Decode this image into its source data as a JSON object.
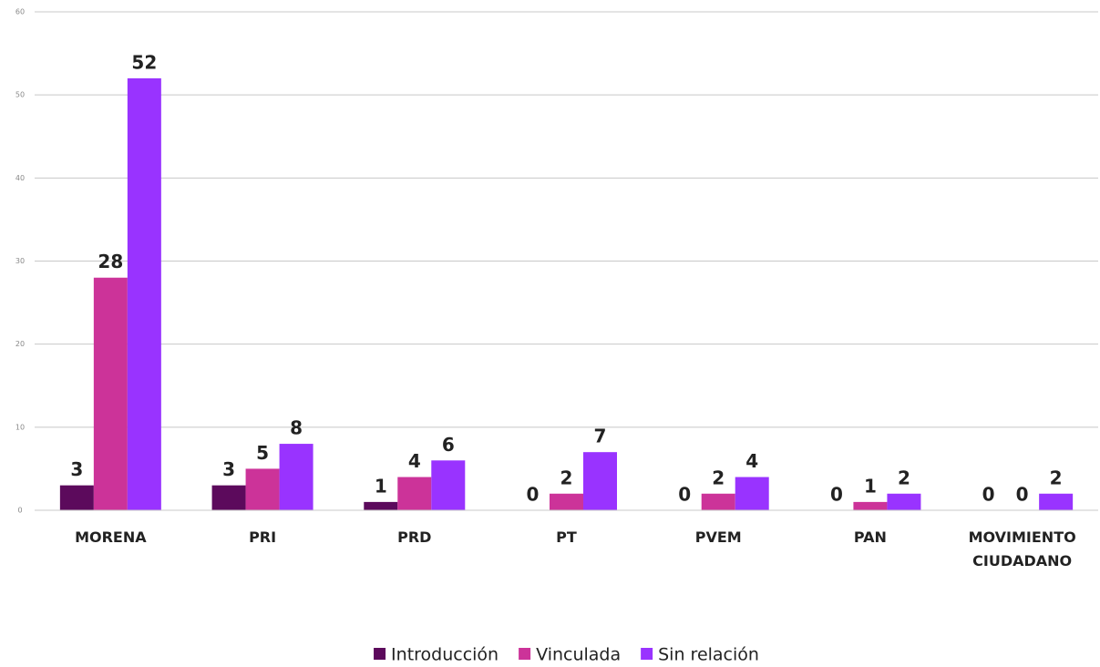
{
  "chart_data": {
    "type": "bar",
    "categories": [
      "MORENA",
      "PRI",
      "PRD",
      "PT",
      "PVEM",
      "PAN",
      "MOVIMIENTO CIUDADANO"
    ],
    "series": [
      {
        "name": "Introducción",
        "color": "#5c0a5c",
        "values": [
          3,
          3,
          1,
          0,
          0,
          0,
          0
        ]
      },
      {
        "name": "Vinculada",
        "color": "#cc3399",
        "values": [
          28,
          5,
          4,
          2,
          2,
          1,
          0
        ]
      },
      {
        "name": "Sin relación",
        "color": "#9933ff",
        "values": [
          52,
          8,
          6,
          7,
          4,
          2,
          2
        ]
      }
    ],
    "ylim": [
      0,
      60
    ],
    "yticks": [
      0,
      10,
      20,
      30,
      40,
      50,
      60
    ],
    "grid": true,
    "legend": "bottom"
  }
}
